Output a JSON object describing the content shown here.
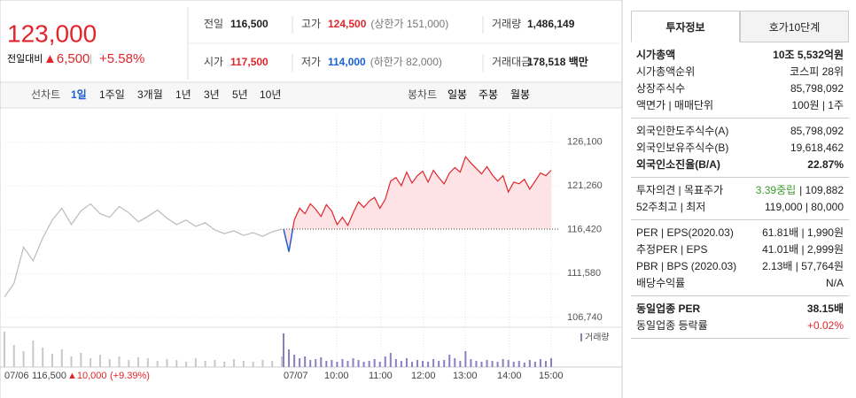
{
  "header": {
    "price": "123,000",
    "change_label": "전일대비",
    "change": "▲6,500",
    "change_pct": "+5.58%"
  },
  "summary": [
    {
      "label": "전일",
      "value": "116,500",
      "color": "#222222"
    },
    {
      "label": "고가",
      "value": "124,500",
      "note": "(상한가 151,000)",
      "color": "#e0262b"
    },
    {
      "label": "거래량",
      "value": "1,486,149",
      "color": "#222222"
    },
    {
      "label": "시가",
      "value": "117,500",
      "color": "#e0262b"
    },
    {
      "label": "저가",
      "value": "114,000",
      "note": "(하한가 82,000)",
      "color": "#1a5fd0"
    },
    {
      "label": "거래대금",
      "value": "178,518 백만",
      "color": "#222222"
    }
  ],
  "line_tabs": {
    "label": "선차트",
    "items": [
      "1일",
      "1주일",
      "3개월",
      "1년",
      "3년",
      "5년",
      "10년"
    ]
  },
  "candle_tabs": {
    "label": "봉차트",
    "items": [
      "일봉",
      "주봉",
      "월봉"
    ]
  },
  "price_chart": {
    "type": "line",
    "ylim": [
      105650,
      129600
    ],
    "yticks": [
      {
        "value": 126100,
        "label": "126,100"
      },
      {
        "value": 121260,
        "label": "121,260"
      },
      {
        "value": 116420,
        "label": "116,420"
      },
      {
        "value": 111580,
        "label": "111,580"
      },
      {
        "value": 106740,
        "label": "106,740"
      }
    ],
    "prev_close": 116500,
    "previous_day": {
      "color": "#bbbbbb",
      "values": [
        109000,
        110500,
        114500,
        113000,
        115500,
        117500,
        118800,
        117000,
        118500,
        119300,
        118200,
        117800,
        119000,
        118300,
        117300,
        117900,
        118600,
        117700,
        117000,
        117500,
        116800,
        117200,
        116400,
        116000,
        116300,
        115800,
        116100,
        115700,
        116200,
        116500
      ]
    },
    "today": {
      "color": "#e0262b",
      "values": [
        116500,
        114000,
        117500,
        118800,
        118200,
        119300,
        118700,
        117900,
        119200,
        118500,
        117000,
        117800,
        116900,
        118300,
        119500,
        118900,
        119600,
        120000,
        118800,
        119800,
        121800,
        122200,
        121300,
        122800,
        121600,
        122400,
        122900,
        121700,
        123000,
        122200,
        121500,
        122700,
        123300,
        122800,
        124500,
        123800,
        123200,
        122600,
        123400,
        122500,
        121800,
        122400,
        120600,
        121700,
        121500,
        122000,
        120900,
        121800,
        122700,
        122400,
        123000
      ]
    },
    "volume_label": "거래량",
    "volume": {
      "previous_color": "#c8c8c8",
      "today_color": "#8a7fc4",
      "previous_day": [
        40,
        25,
        18,
        30,
        22,
        15,
        20,
        12,
        16,
        10,
        14,
        9,
        12,
        8,
        11,
        10,
        7,
        9,
        8,
        6,
        10,
        7,
        8,
        6,
        9,
        7,
        6,
        8,
        7,
        12
      ],
      "today": [
        38,
        20,
        14,
        10,
        12,
        8,
        9,
        11,
        7,
        8,
        6,
        9,
        7,
        10,
        8,
        6,
        7,
        9,
        6,
        12,
        16,
        9,
        7,
        10,
        6,
        8,
        7,
        6,
        9,
        7,
        8,
        14,
        10,
        7,
        18,
        9,
        7,
        6,
        8,
        7,
        6,
        9,
        8,
        6,
        7,
        5,
        8,
        6,
        9,
        7,
        10
      ]
    },
    "x_labels": [
      "07/06",
      "07/07",
      "10:00",
      "11:00",
      "12:00",
      "13:00",
      "14:00",
      "15:00"
    ],
    "prev_day_summary": {
      "close": "116,500",
      "change": "▲10,000",
      "pct": "(+9.39%)"
    }
  },
  "right_panel": {
    "tabs": [
      "투자정보",
      "호가10단계"
    ],
    "sections": [
      [
        {
          "label": "시가총액",
          "value": "10조 5,532억원",
          "strong": true
        },
        {
          "label": "시가총액순위",
          "value": "코스피 28위"
        },
        {
          "label": "상장주식수",
          "value": "85,798,092"
        },
        {
          "label": "액면가 | 매매단위",
          "value": "100원 | 1주"
        }
      ],
      [
        {
          "label": "외국인한도주식수(A)",
          "value": "85,798,092"
        },
        {
          "label": "외국인보유주식수(B)",
          "value": "19,618,462"
        },
        {
          "label": "외국인소진율(B/A)",
          "value": "22.87%",
          "strong": true
        }
      ],
      [
        {
          "label": "투자의견 | 목표주가",
          "value": "3.39중립",
          "value2": "| 109,882"
        },
        {
          "label": "52주최고 | 최저",
          "value": "119,000 | 80,000"
        }
      ],
      [
        {
          "label": "PER | EPS(2020.03)",
          "value": "61.81배 | 1,990원"
        },
        {
          "label": "추정PER | EPS",
          "value": "41.01배 | 2,999원"
        },
        {
          "label": "PBR | BPS (2020.03)",
          "value": "2.13배 | 57,764원"
        },
        {
          "label": "배당수익률",
          "value": "N/A"
        }
      ],
      [
        {
          "label": "동일업종 PER",
          "value": "38.15배",
          "strong": true
        },
        {
          "label": "동일업종 등락률",
          "value": "+0.02%",
          "color": "#e0262b"
        }
      ]
    ]
  }
}
